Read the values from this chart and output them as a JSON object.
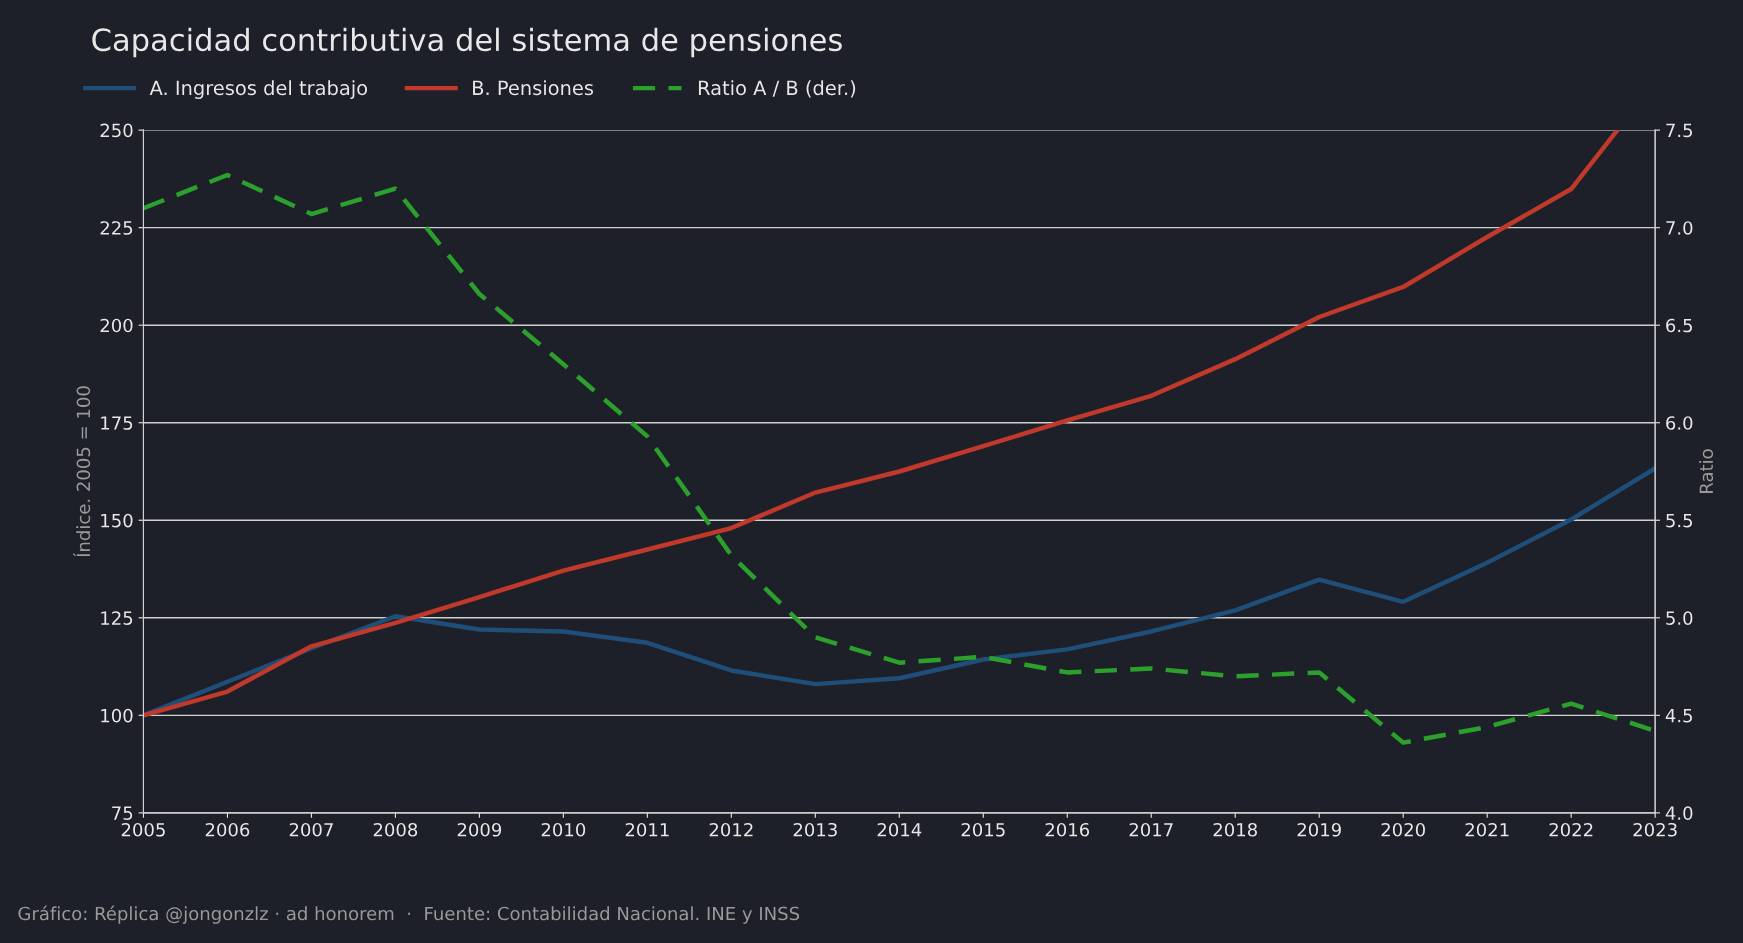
{
  "chart_data": {
    "type": "line",
    "title": "Capacidad contributiva del sistema de pensiones",
    "ylabel": "Índice. 2005 = 100",
    "y2label": "Ratio",
    "x": [
      2005,
      2006,
      2007,
      2008,
      2009,
      2010,
      2011,
      2012,
      2013,
      2014,
      2015,
      2016,
      2017,
      2018,
      2019,
      2020,
      2021,
      2022,
      2023
    ],
    "series": [
      {
        "name": "A. Ingresos del trabajo",
        "color": "#1f4e79",
        "values": [
          100,
          108.6,
          117.2,
          125.4,
          122,
          121.5,
          118.6,
          111.5,
          108,
          109.5,
          114.3,
          116.9,
          121.5,
          126.9,
          134.8,
          129.1,
          139.1,
          150.2,
          163.3
        ]
      },
      {
        "name": "B. Pensiones",
        "color": "#c0392b",
        "x": [
          2005,
          2006,
          2007,
          2008,
          2009,
          2010,
          2011,
          2012,
          2013,
          2014,
          2015,
          2016,
          2017,
          2018,
          2019,
          2020,
          2021,
          2022,
          2022.55
        ],
        "values": [
          100,
          106.1,
          117.7,
          123.7,
          130.3,
          137.1,
          142.5,
          148,
          157.1,
          162.5,
          169,
          175.6,
          181.9,
          191.3,
          202.1,
          209.8,
          222.6,
          234.9,
          250
        ]
      },
      {
        "name": "Ratio A / B (der.)",
        "color": "#2ca02c",
        "axis": "y2",
        "line_style": "dashed",
        "values": [
          7.1,
          7.27,
          7.07,
          7.2,
          6.66,
          6.3,
          5.93,
          5.32,
          4.9,
          4.77,
          4.8,
          4.72,
          4.74,
          4.7,
          4.72,
          4.36,
          4.44,
          4.56,
          4.42
        ]
      }
    ],
    "xlim": [
      2005,
      2023
    ],
    "xticks": [
      2005,
      2006,
      2007,
      2008,
      2009,
      2010,
      2011,
      2012,
      2013,
      2014,
      2015,
      2016,
      2017,
      2018,
      2019,
      2020,
      2021,
      2022,
      2023
    ],
    "ylim": [
      75,
      250
    ],
    "yticks": [
      75,
      100,
      125,
      150,
      175,
      200,
      225,
      250
    ],
    "y2lim": [
      4,
      7.5
    ],
    "y2ticks": [
      {
        "value": 4,
        "label": "4.0"
      },
      4.5,
      {
        "value": 5,
        "label": "5.0"
      },
      5.5,
      {
        "value": 6,
        "label": "6.0"
      },
      6.5,
      {
        "value": 7,
        "label": "7.0"
      },
      7.5
    ],
    "grid": "y",
    "legend": "top left",
    "marker": "none",
    "line_style": "solid",
    "annotations": [
      "Gráfico: Réplica @jongonzlz · ad honorem  ·  Fuente: Contabilidad Nacional. INE y INSS"
    ]
  }
}
